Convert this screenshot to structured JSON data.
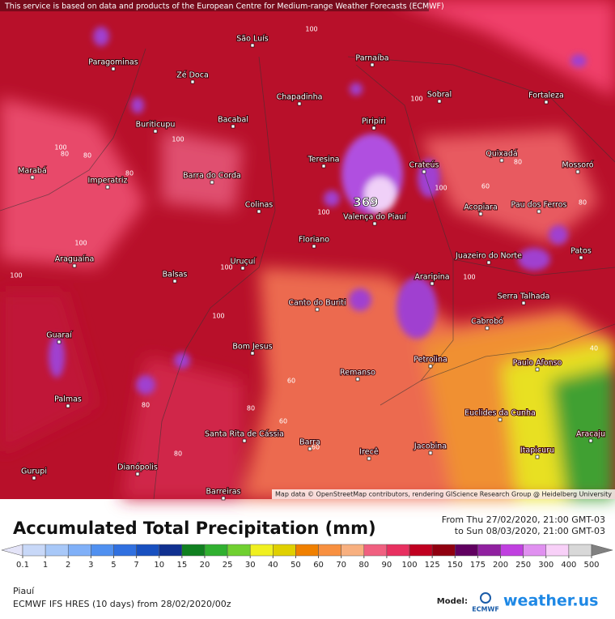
{
  "header": {
    "notice": "This service is based on data and products of the European Centre for Medium-range Weather Forecasts (ECMWF)"
  },
  "map": {
    "max_label": "369",
    "cities": [
      "São Luís",
      "Parnaíba",
      "Paragominas",
      "Zé Doca",
      "Chapadinha",
      "Sobral",
      "Fortaleza",
      "Piripiri",
      "Buriticupu",
      "Bacabal",
      "Teresina",
      "Crateús",
      "Quixadá",
      "Mossoró",
      "Marabá",
      "Imperatriz",
      "Barra do Corda",
      "Valença do Piauí",
      "Pau dos Ferros",
      "Colinas",
      "Acopiara",
      "Floriano",
      "Araguaína",
      "Uruçuí",
      "Juazeiro do Norte",
      "Patos",
      "Balsas",
      "Araripina",
      "Serra Talhada",
      "Canto do Buriti",
      "Cabrobó",
      "Guaraí",
      "Bom Jesus",
      "Paulo Afonso",
      "Petrolina",
      "Remanso",
      "Palmas",
      "Euclides da Cunha",
      "Santa Rita de Cássia",
      "Aracaju",
      "Barra",
      "Irecê",
      "Jacobina",
      "Itapicuru",
      "Dianópolis",
      "Gurupi",
      "Barreiras"
    ],
    "contour_labels": [
      100,
      100,
      80,
      100,
      80,
      100,
      100,
      80,
      100,
      100,
      100,
      80,
      60,
      80,
      100,
      100,
      80,
      60,
      60,
      40,
      80,
      60,
      100,
      80
    ],
    "attribution": "Map data © OpenStreetMap contributors, rendering GIScience Research Group @ Heidelberg University"
  },
  "legend": {
    "title": "Accumulated Total Precipitation (mm)",
    "period_from": "From Thu 27/02/2020, 21:00 GMT-03",
    "period_to": "to Sun 08/03/2020, 21:00 GMT-03",
    "ticks": [
      0.1,
      1,
      2,
      3,
      5,
      7,
      10,
      15,
      20,
      25,
      30,
      40,
      50,
      60,
      70,
      80,
      90,
      100,
      125,
      150,
      175,
      200,
      250,
      300,
      400,
      500
    ],
    "colors": [
      "#e4e4f8",
      "#c8d8f8",
      "#a8c8f8",
      "#80b0f8",
      "#5090f0",
      "#3070e0",
      "#1850c0",
      "#103090",
      "#108020",
      "#30b030",
      "#70d030",
      "#f0f020",
      "#e0d000",
      "#f08000",
      "#f89040",
      "#f8b080",
      "#f06080",
      "#e83060",
      "#c00020",
      "#900010",
      "#600060",
      "#9020a0",
      "#c040e0",
      "#e090f0",
      "#f8d0f8",
      "#d8d8d8",
      "#808080"
    ]
  },
  "footer": {
    "region": "Piauí",
    "model_run": "ECMWF IFS HRES (10 days) from 28/02/2020/00z",
    "model_label": "Model:",
    "logo_text": "ECMWF",
    "brand": "weather.us"
  }
}
